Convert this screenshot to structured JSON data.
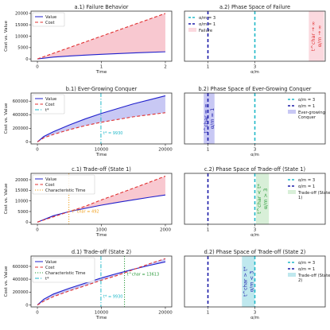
{
  "chart_data": [
    {
      "id": "a1",
      "type": "line",
      "title": "a.1) Failure Behavior",
      "xlabel": "Time",
      "ylabel": "Cost vs. Value",
      "xlim": [
        -0.1,
        2.1
      ],
      "ylim": [
        -1000,
        21000
      ],
      "xticks": [
        0,
        1,
        2
      ],
      "yticks": [
        0,
        5000,
        10000,
        15000,
        20000
      ],
      "series": [
        {
          "name": "Value",
          "color": "#1f1fcc",
          "dash": "solid",
          "x": [
            0,
            0.25,
            0.5,
            0.75,
            1.0,
            1.25,
            1.5,
            1.75,
            2.0
          ],
          "y": [
            0,
            800,
            1300,
            1700,
            2050,
            2350,
            2650,
            2900,
            3150
          ]
        },
        {
          "name": "Cost",
          "color": "#e03030",
          "dash": "dashed",
          "x": [
            0,
            2
          ],
          "y": [
            0,
            20000
          ]
        }
      ],
      "fill": {
        "between": [
          "Value",
          "Cost"
        ],
        "color": "#f8c8d0"
      },
      "legend": {
        "position": "top-left",
        "items": [
          "Value",
          "Cost"
        ]
      },
      "annotations": []
    },
    {
      "id": "a2",
      "type": "line",
      "title": "a.2) Phase Space of Failure",
      "xlabel": "α/m",
      "ylabel": "",
      "xlim": [
        0,
        6
      ],
      "xticks": [
        1,
        3
      ],
      "vlines": [
        {
          "x": 3,
          "label": "α/m = 3",
          "color": "#20b8c8",
          "dash": "dashed"
        },
        {
          "x": 1,
          "label": "α/m = 1",
          "color": "#1a1aa8",
          "dash": "dashed"
        }
      ],
      "region": {
        "x0": 5.3,
        "x1": 5.95,
        "color": "#fbd9df",
        "label": "Failure"
      },
      "region_text": [
        "t^char → ∞",
        "α/m → ∞"
      ],
      "region_text_color": "#e03030",
      "legend": {
        "position": "top-left"
      }
    },
    {
      "id": "b1",
      "type": "line",
      "title": "b.1) Ever-Growing Conquer",
      "xlabel": "Time",
      "ylabel": "Cost vs. Value",
      "xlim": [
        -1000,
        21000
      ],
      "ylim": [
        -30000,
        720000
      ],
      "xticks": [
        0,
        10000,
        20000
      ],
      "yticks": [
        0,
        200000,
        400000,
        600000
      ],
      "series": [
        {
          "name": "Value",
          "color": "#1f1fcc",
          "dash": "solid",
          "x": [
            0,
            1000,
            2500,
            5000,
            7500,
            10000,
            12500,
            15000,
            17500,
            20000
          ],
          "y": [
            0,
            80000,
            150000,
            250000,
            340000,
            420000,
            490000,
            560000,
            620000,
            680000
          ]
        },
        {
          "name": "Cost",
          "color": "#e03030",
          "dash": "dashed",
          "x": [
            0,
            1000,
            2500,
            5000,
            7500,
            10000,
            12500,
            15000,
            17500,
            20000
          ],
          "y": [
            0,
            60000,
            110000,
            180000,
            240000,
            290000,
            330000,
            370000,
            400000,
            430000
          ]
        }
      ],
      "fill": {
        "between": [
          "Value",
          "Cost"
        ],
        "color": "#c8c8f4"
      },
      "vlines": [
        {
          "x": 9930,
          "label": "t*",
          "color": "#20b8c8",
          "dash": "dashdot"
        }
      ],
      "legend": {
        "position": "top-left",
        "items": [
          "Value",
          "Cost",
          "t*"
        ]
      },
      "annotations": [
        {
          "text": "t* = 9930",
          "x": 10300,
          "y": 110000,
          "color": "#20b8c8"
        }
      ]
    },
    {
      "id": "b2",
      "type": "line",
      "title": "b.2) Phase Space of Ever-Growing Conquer",
      "xlabel": "α/m",
      "ylabel": "",
      "xlim": [
        0,
        6
      ],
      "xticks": [
        1,
        3
      ],
      "vlines": [
        {
          "x": 3,
          "label": "α/m = 3",
          "color": "#20b8c8",
          "dash": "dashed"
        },
        {
          "x": 1,
          "label": "α/m = 1",
          "color": "#1a1aa8",
          "dash": "dashed"
        }
      ],
      "region": {
        "x0": 0.82,
        "x1": 1.28,
        "color": "#c8c8f4",
        "label": "Ever-growing Conquer"
      },
      "region_text": [
        "t^char = ∞",
        "α/m = 1"
      ],
      "region_text_color": "#1a1aa8",
      "legend": {
        "position": "top-right"
      }
    },
    {
      "id": "c1",
      "type": "line",
      "title": "c.1) Trade-off (State 1)",
      "xlabel": "Time",
      "ylabel": "Cost vs. Value",
      "xlim": [
        -100,
        2100
      ],
      "ylim": [
        -1000,
        23000
      ],
      "xticks": [
        0,
        1000,
        2000
      ],
      "yticks": [
        0,
        5000,
        10000,
        15000,
        20000
      ],
      "series": [
        {
          "name": "Value",
          "color": "#1f1fcc",
          "dash": "solid",
          "x": [
            0,
            250,
            500,
            750,
            1000,
            1250,
            1500,
            1750,
            2000
          ],
          "y": [
            0,
            3000,
            5000,
            6500,
            8000,
            9300,
            10500,
            11700,
            12800
          ]
        },
        {
          "name": "Cost",
          "color": "#e03030",
          "dash": "dashed",
          "x": [
            0,
            250,
            500,
            750,
            1000,
            1250,
            1500,
            1750,
            2000
          ],
          "y": [
            0,
            2500,
            5000,
            7500,
            10500,
            13200,
            16000,
            18800,
            21700
          ]
        }
      ],
      "fill": {
        "between": [
          "Value",
          "Cost"
        ],
        "color": "#f8c8d0"
      },
      "vlines": [
        {
          "x": 492,
          "label": "Characteristic Time",
          "color": "#f0a020",
          "dash": "dotted"
        }
      ],
      "legend": {
        "position": "top-left",
        "items": [
          "Value",
          "Cost",
          "Characteristic Time"
        ]
      },
      "annotations": [
        {
          "text": "t^char = 492",
          "x": 540,
          "y": 4500,
          "color": "#f0a020"
        }
      ]
    },
    {
      "id": "c2",
      "type": "line",
      "title": "c.2) Phase Space of Trade-off (State 1)",
      "xlabel": "α/m",
      "ylabel": "",
      "xlim": [
        0,
        6
      ],
      "xticks": [
        1,
        3
      ],
      "vlines": [
        {
          "x": 3,
          "label": "α/m = 3",
          "color": "#20b8c8",
          "dash": "dashed"
        },
        {
          "x": 1,
          "label": "α/m = 1",
          "color": "#1a1aa8",
          "dash": "dashed"
        }
      ],
      "region": {
        "x0": 3.05,
        "x1": 3.6,
        "color": "#d8efd8",
        "label": "Trade-off (State 1)"
      },
      "region_text": [
        "t^char < t*",
        "α/m > 3"
      ],
      "region_text_color": "#2a9a3a",
      "legend": {
        "position": "top-right"
      }
    },
    {
      "id": "d1",
      "type": "line",
      "title": "d.1) Trade-off (State 2)",
      "xlabel": "Time",
      "ylabel": "Cost vs. Value",
      "xlim": [
        -1000,
        21000
      ],
      "ylim": [
        -30000,
        760000
      ],
      "xticks": [
        0,
        10000,
        20000
      ],
      "yticks": [
        0,
        200000,
        400000,
        600000
      ],
      "series": [
        {
          "name": "Value",
          "color": "#1f1fcc",
          "dash": "solid",
          "x": [
            0,
            1000,
            2500,
            5000,
            7500,
            10000,
            12500,
            15000,
            17500,
            20000
          ],
          "y": [
            0,
            90000,
            170000,
            260000,
            340000,
            420000,
            490000,
            555000,
            615000,
            670000
          ]
        },
        {
          "name": "Cost",
          "color": "#e03030",
          "dash": "dashed",
          "x": [
            0,
            1000,
            2500,
            5000,
            7500,
            10000,
            12500,
            15000,
            17500,
            20000
          ],
          "y": [
            0,
            60000,
            130000,
            220000,
            300000,
            385000,
            460000,
            550000,
            640000,
            720000
          ]
        }
      ],
      "fill": {
        "between": [
          "Value",
          "Cost"
        ],
        "color": "#c8c8f4"
      },
      "vlines": [
        {
          "x": 13613,
          "label": "Characteristic Time",
          "color": "#2a9a3a",
          "dash": "dotted"
        },
        {
          "x": 9930,
          "label": "t*",
          "color": "#20b8c8",
          "dash": "dashdot"
        }
      ],
      "legend": {
        "position": "top-left",
        "items": [
          "Value",
          "Cost",
          "Characteristic Time",
          "t*"
        ]
      },
      "annotations": [
        {
          "text": "t^char = 13613",
          "x": 14000,
          "y": 460000,
          "color": "#2a9a3a"
        },
        {
          "text": "t* = 9930",
          "x": 10300,
          "y": 110000,
          "color": "#20b8c8"
        }
      ]
    },
    {
      "id": "d2",
      "type": "line",
      "title": "d.2) Phase Space of Trade-off (State 2)",
      "xlabel": "α/m",
      "ylabel": "",
      "xlim": [
        0,
        6
      ],
      "xticks": [
        1,
        3
      ],
      "vlines": [
        {
          "x": 3,
          "label": "α/m = 3",
          "color": "#20b8c8",
          "dash": "dashed"
        },
        {
          "x": 1,
          "label": "α/m = 1",
          "color": "#1a1aa8",
          "dash": "dashed"
        }
      ],
      "region": {
        "x0": 2.45,
        "x1": 3.0,
        "color": "#bfe8ee",
        "label": "Trade-off (State 2)"
      },
      "region_text": [
        "t^char > t*",
        "α/m < 3"
      ],
      "region_text_color": "#1a1aa8",
      "legend": {
        "position": "top-right"
      }
    }
  ]
}
